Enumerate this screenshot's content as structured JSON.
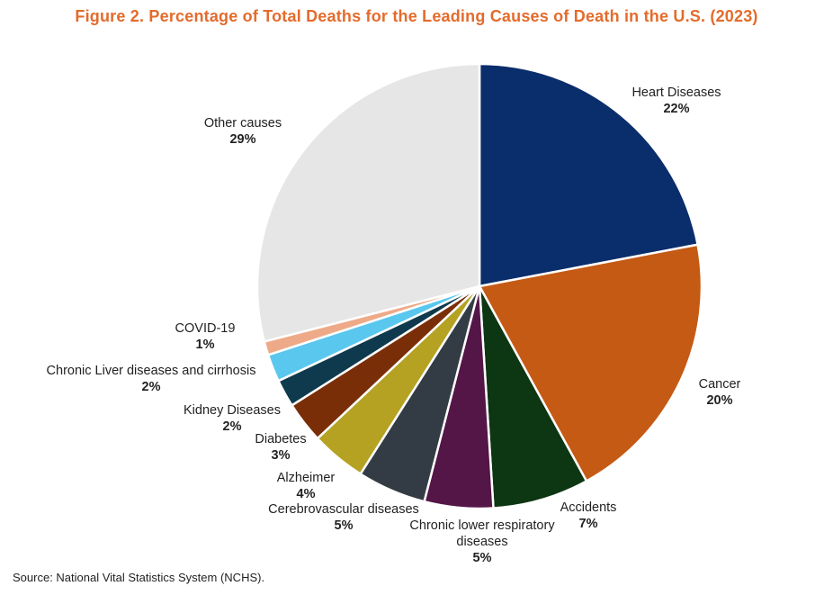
{
  "figure_title": "Figure 2. Percentage of Total Deaths for the Leading Causes of Death in the U.S. (2023)",
  "source": "Source: National Vital Statistics System (NCHS).",
  "chart_data": {
    "type": "pie",
    "title": "Figure 2. Percentage of Total Deaths for the Leading Causes of Death in the U.S. (2023)",
    "unit": "%",
    "slices": [
      {
        "name": "Heart Diseases",
        "value": 22,
        "label": "22%",
        "color": "#0a2d6b"
      },
      {
        "name": "Cancer",
        "value": 20,
        "label": "20%",
        "color": "#c55a15"
      },
      {
        "name": "Accidents",
        "value": 7,
        "label": "7%",
        "color": "#0d3613"
      },
      {
        "name": "Chronic lower respiratory diseases",
        "value": 5,
        "label": "5%",
        "color": "#541547"
      },
      {
        "name": "Cerebrovascular diseases",
        "value": 5,
        "label": "5%",
        "color": "#333c44"
      },
      {
        "name": "Alzheimer",
        "value": 4,
        "label": "4%",
        "color": "#b5a223"
      },
      {
        "name": "Diabetes",
        "value": 3,
        "label": "3%",
        "color": "#7a2e08"
      },
      {
        "name": "Kidney Diseases",
        "value": 2,
        "label": "2%",
        "color": "#0f3a4d"
      },
      {
        "name": "Chronic Liver diseases and cirrhosis",
        "value": 2,
        "label": "2%",
        "color": "#5ac7ee"
      },
      {
        "name": "COVID-19",
        "value": 1,
        "label": "1%",
        "color": "#eeaa88"
      },
      {
        "name": "Other causes",
        "value": 29,
        "label": "29%",
        "color": "#e6e6e6"
      }
    ]
  }
}
